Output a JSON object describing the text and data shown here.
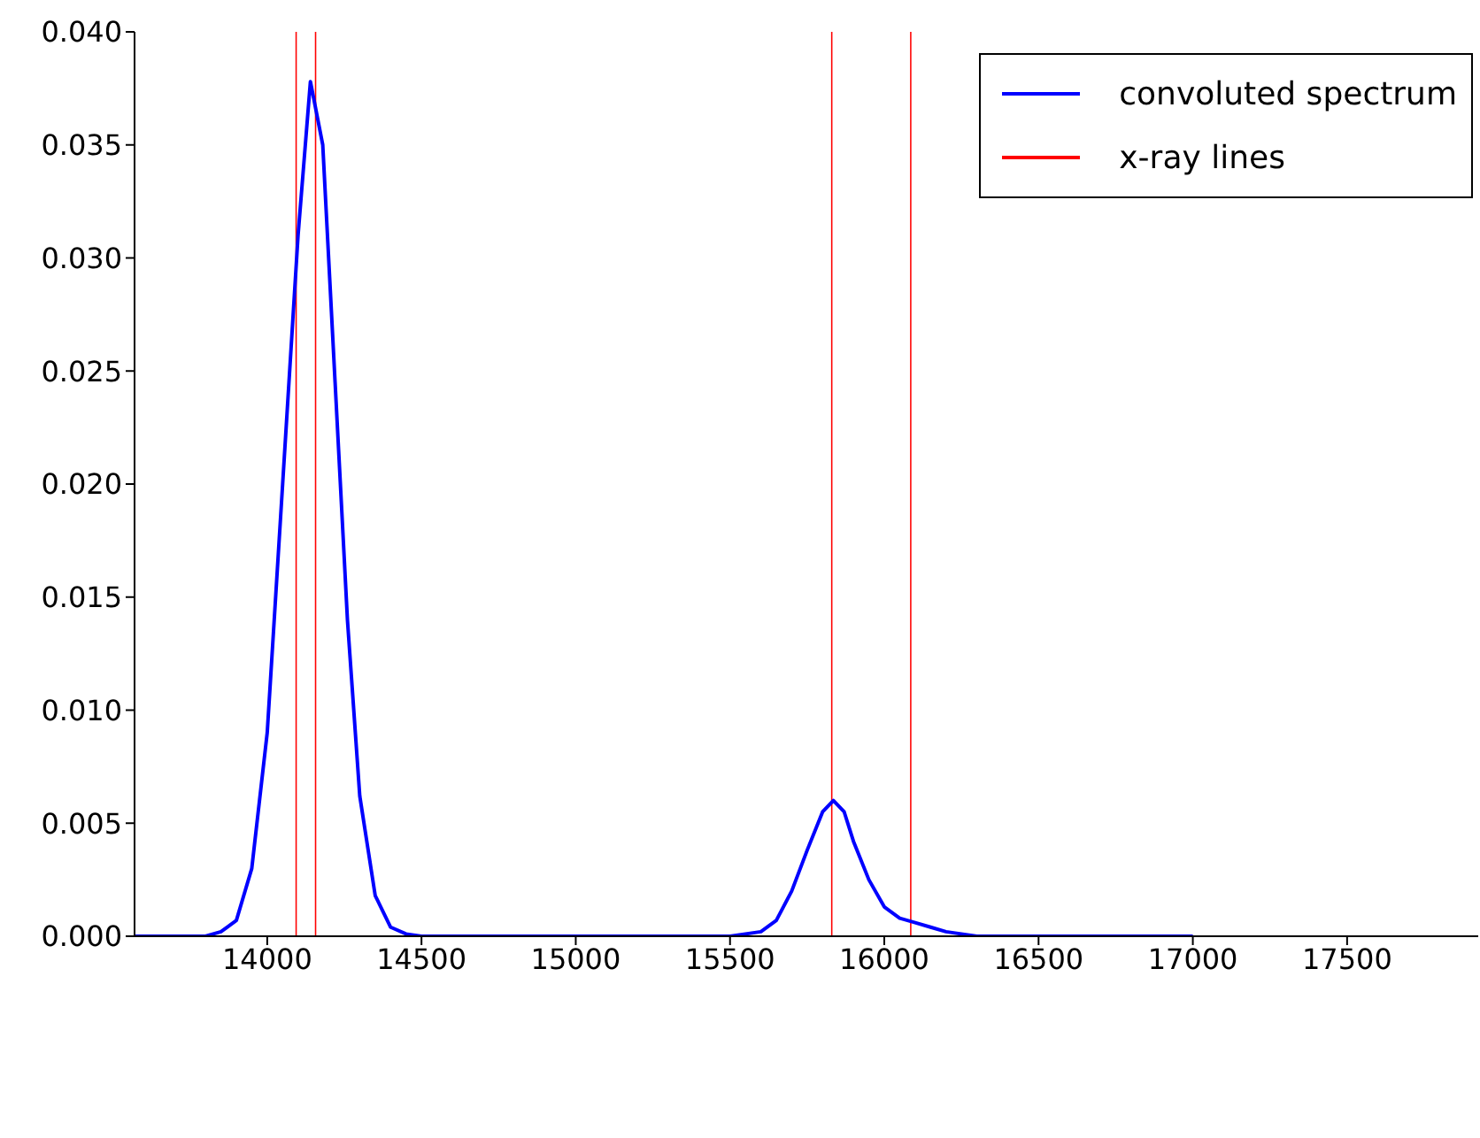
{
  "chart_data": {
    "type": "line",
    "xlim": [
      13570,
      17925
    ],
    "xticks": [
      14000,
      14500,
      15000,
      15500,
      16000,
      16500,
      17000,
      17500
    ],
    "ylim": [
      0,
      0.04
    ],
    "yticks": [
      {
        "value": 0,
        "label": "0.000"
      },
      {
        "value": 0.005,
        "label": "0.005"
      },
      {
        "value": 0.01,
        "label": "0.010"
      },
      {
        "value": 0.015,
        "label": "0.015"
      },
      {
        "value": 0.02,
        "label": "0.020"
      },
      {
        "value": 0.025,
        "label": "0.025"
      },
      {
        "value": 0.03,
        "label": "0.030"
      },
      {
        "value": 0.035,
        "label": "0.035"
      },
      {
        "value": 0.04,
        "label": "0.040"
      }
    ],
    "legend": "top right",
    "grid": false,
    "marker": "none",
    "line_style": "solid",
    "series": [
      {
        "name": "convoluted spectrum",
        "color": "#0000ff",
        "x": [
          13570,
          13800,
          13850,
          13900,
          13950,
          14000,
          14050,
          14100,
          14140,
          14180,
          14220,
          14260,
          14300,
          14350,
          14400,
          14450,
          14500,
          15000,
          15500,
          15600,
          15650,
          15700,
          15750,
          15800,
          15835,
          15870,
          15900,
          15950,
          16000,
          16050,
          16100,
          16150,
          16200,
          16300,
          16500,
          17000
        ],
        "values": [
          0,
          0,
          0.0002,
          0.0007,
          0.003,
          0.009,
          0.02,
          0.031,
          0.0378,
          0.035,
          0.0245,
          0.014,
          0.0062,
          0.0018,
          0.0004,
          0.0001,
          0,
          0,
          0,
          0.0002,
          0.0007,
          0.002,
          0.0038,
          0.0055,
          0.006,
          0.0055,
          0.0042,
          0.0025,
          0.0013,
          0.0008,
          0.0006,
          0.0004,
          0.0002,
          0,
          0,
          0
        ]
      },
      {
        "name": "x-ray lines",
        "type": "bar",
        "color": "#ff0000",
        "x": [
          14094,
          14157,
          15830,
          16086
        ],
        "values": [
          0.04,
          0.04,
          0.04,
          0.04
        ]
      }
    ]
  }
}
